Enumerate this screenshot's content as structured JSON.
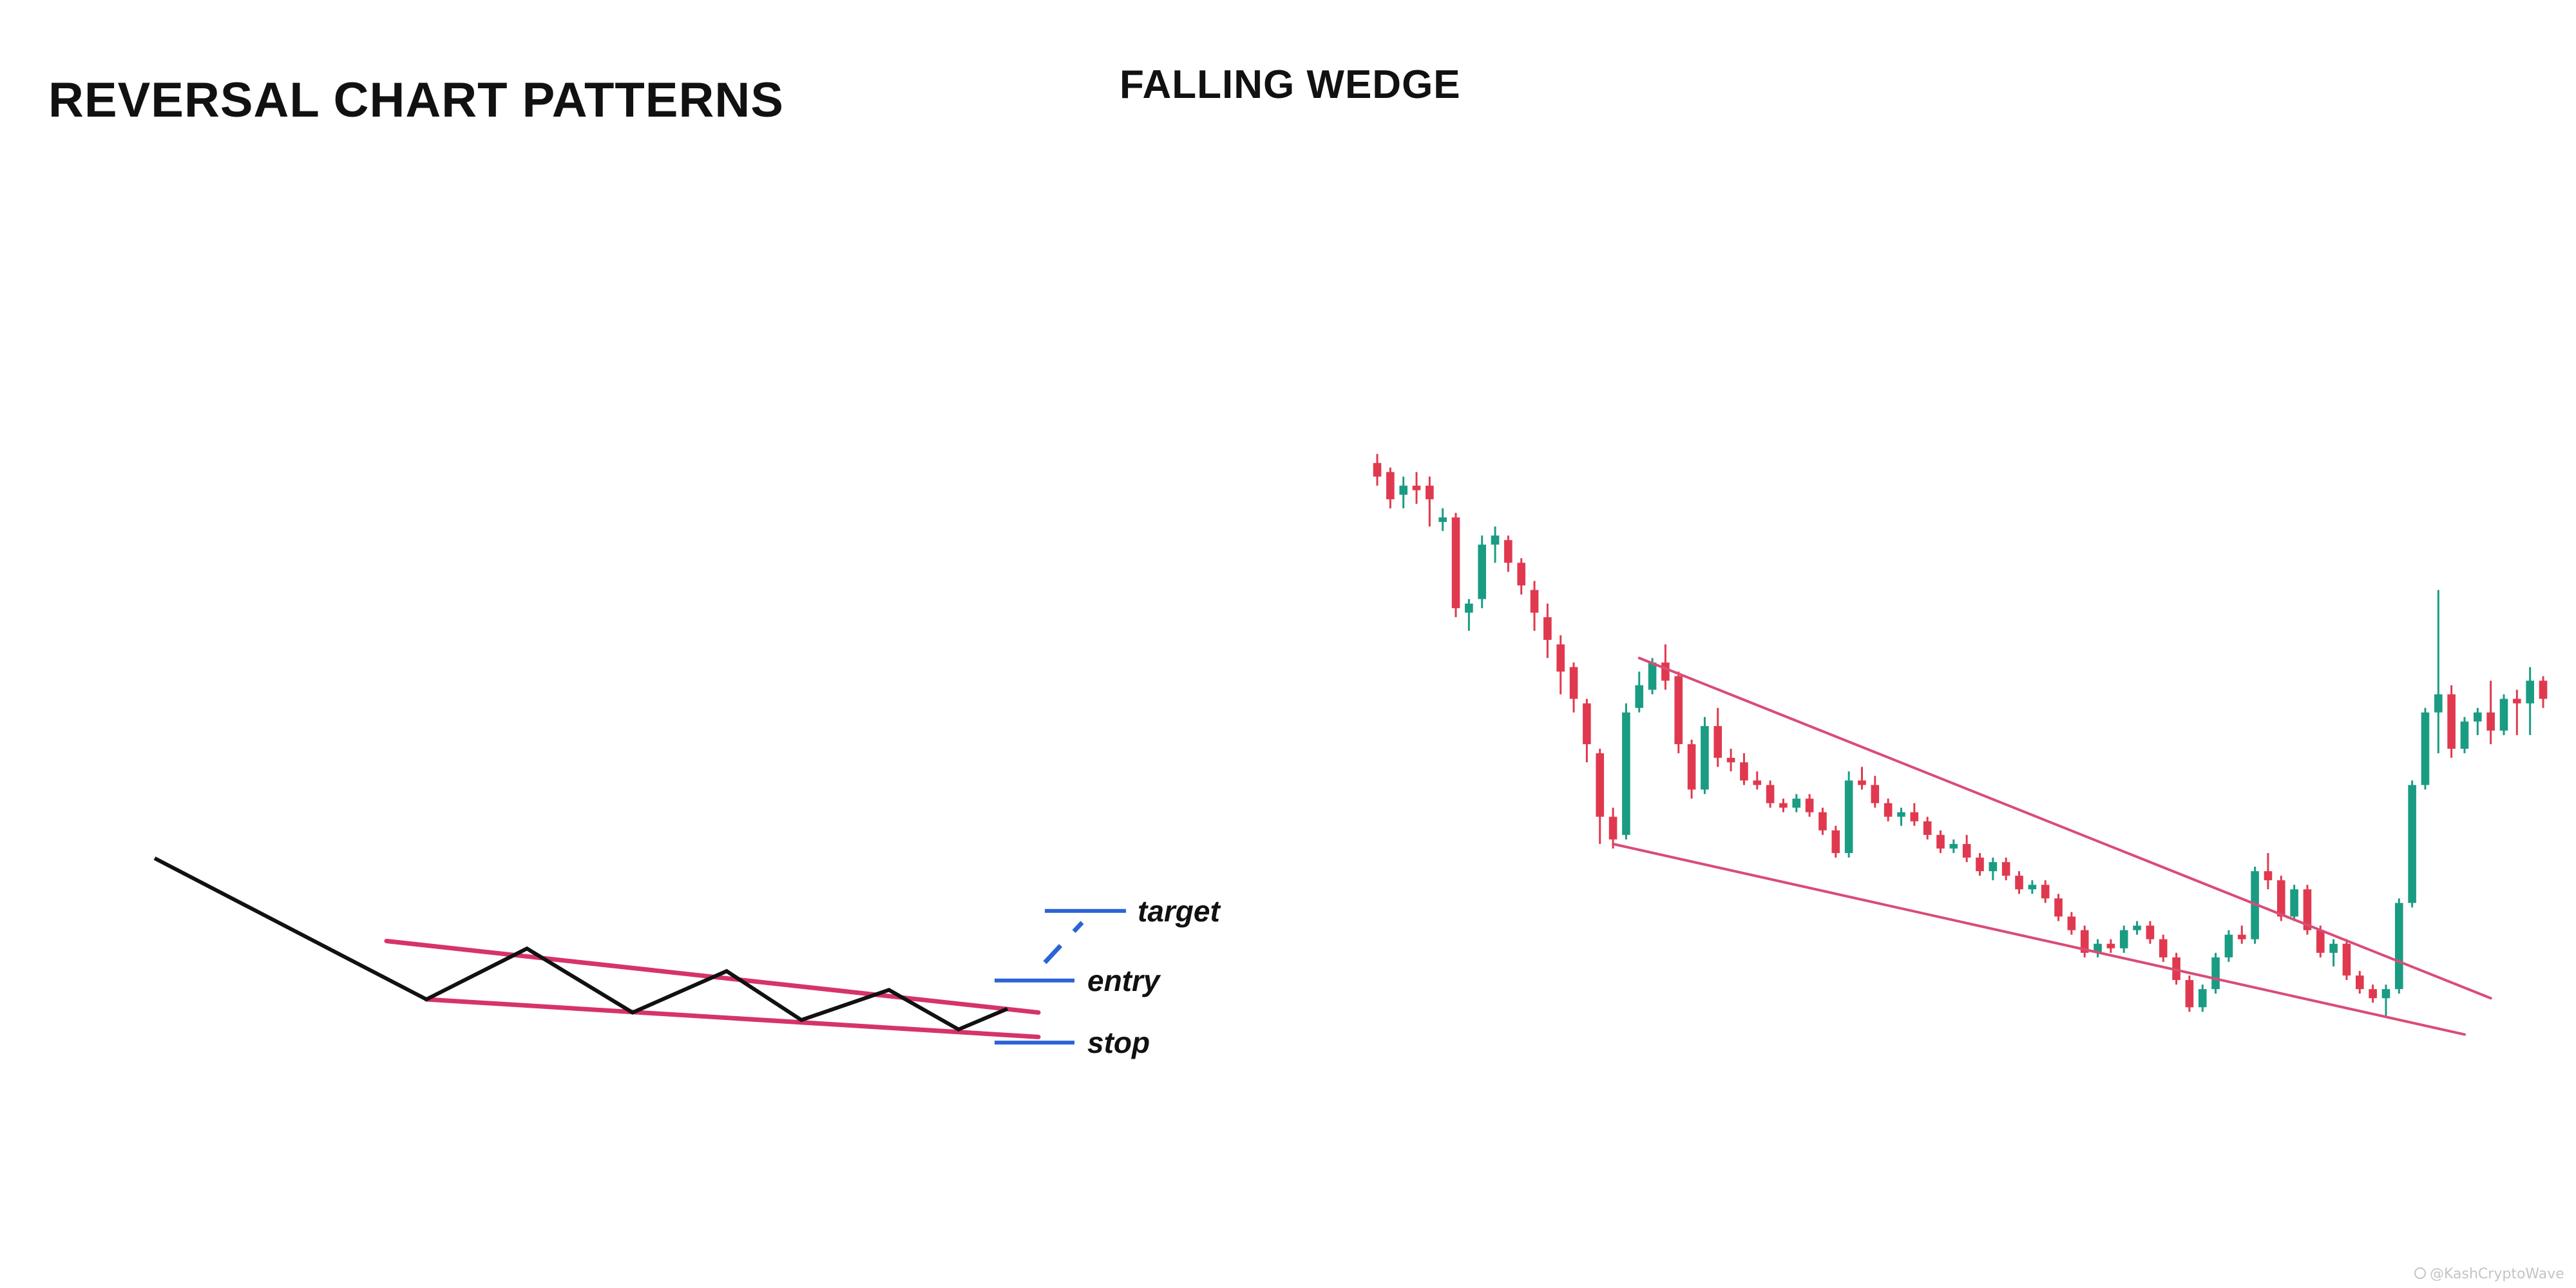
{
  "title": "REVERSAL CHART PATTERNS",
  "subtitle": "FALLING WEDGE",
  "watermark": "@KashCryptoWave",
  "colors": {
    "background": "#ffffff",
    "text": "#111111",
    "wedge_line": "#d6336c",
    "level_line": "#2c63d6",
    "price_path": "#111111",
    "candle_up": "#1a9c83",
    "candle_down": "#e0394f",
    "trendline": "#d94c76"
  },
  "chart_data": [
    {
      "type": "diagram",
      "pattern": "falling wedge",
      "levels": [
        {
          "key": "target",
          "label": "target"
        },
        {
          "key": "entry",
          "label": "entry"
        },
        {
          "key": "stop",
          "label": "stop"
        }
      ],
      "price_path": [
        100,
        25,
        52,
        18,
        40,
        14,
        30,
        9,
        20
      ],
      "wedge": {
        "upper": [
          [
            0,
            56
          ],
          [
            10,
            18
          ]
        ],
        "lower": [
          [
            0,
            25
          ],
          [
            10,
            5
          ]
        ]
      },
      "entry_level": 35,
      "target_level": 72,
      "stop_level": 2
    },
    {
      "type": "candlestick",
      "ohlc": [
        [
          98,
          100,
          93,
          95
        ],
        [
          96,
          97,
          88,
          90
        ],
        [
          91,
          95,
          88,
          93
        ],
        [
          93,
          96,
          89,
          92
        ],
        [
          93,
          95,
          84,
          90
        ],
        [
          85,
          88,
          83,
          86
        ],
        [
          86,
          87,
          64,
          66
        ],
        [
          65,
          68,
          61,
          67
        ],
        [
          68,
          82,
          66,
          80
        ],
        [
          80,
          84,
          76,
          82
        ],
        [
          81,
          82,
          74,
          76
        ],
        [
          76,
          77,
          69,
          71
        ],
        [
          70,
          72,
          61,
          65
        ],
        [
          64,
          67,
          55,
          59
        ],
        [
          58,
          60,
          47,
          52
        ],
        [
          53,
          54,
          43,
          46
        ],
        [
          45,
          46,
          32,
          36
        ],
        [
          34,
          35,
          14,
          20
        ],
        [
          20,
          22,
          13,
          15
        ],
        [
          16,
          45,
          15,
          43
        ],
        [
          44,
          52,
          43,
          49
        ],
        [
          48,
          55,
          47,
          54
        ],
        [
          54,
          58,
          48,
          50
        ],
        [
          51,
          52,
          34,
          36
        ],
        [
          36,
          37,
          24,
          26
        ],
        [
          26,
          42,
          25,
          40
        ],
        [
          40,
          44,
          31,
          33
        ],
        [
          33,
          35,
          30,
          32
        ],
        [
          32,
          34,
          27,
          28
        ],
        [
          28,
          30,
          26,
          27
        ],
        [
          27,
          28,
          22,
          23
        ],
        [
          23,
          24,
          21,
          22
        ],
        [
          22,
          25,
          21,
          24
        ],
        [
          24,
          25,
          20,
          21
        ],
        [
          21,
          22,
          16,
          17
        ],
        [
          17,
          18,
          11,
          12
        ],
        [
          12,
          30,
          11,
          28
        ],
        [
          28,
          31,
          26,
          27
        ],
        [
          27,
          29,
          22,
          23
        ],
        [
          23,
          24,
          19,
          20
        ],
        [
          20,
          22,
          18,
          21
        ],
        [
          21,
          23,
          18,
          19
        ],
        [
          19,
          20,
          15,
          16
        ],
        [
          16,
          17,
          12,
          13
        ],
        [
          13,
          15,
          12,
          14
        ],
        [
          14,
          16,
          10,
          11
        ],
        [
          11,
          12,
          7,
          8
        ],
        [
          8,
          11,
          6,
          10
        ],
        [
          10,
          11,
          6,
          7
        ],
        [
          7,
          8,
          3,
          4
        ],
        [
          4,
          6,
          3,
          5
        ],
        [
          5,
          6,
          1,
          2
        ],
        [
          2,
          3,
          -3,
          -2
        ],
        [
          -2,
          -1,
          -6,
          -5
        ],
        [
          -5,
          -4,
          -11,
          -10
        ],
        [
          -10,
          -7,
          -11,
          -8
        ],
        [
          -8,
          -7,
          -10,
          -9
        ],
        [
          -9,
          -4,
          -10,
          -5
        ],
        [
          -5,
          -3,
          -6,
          -4
        ],
        [
          -4,
          -3,
          -8,
          -7
        ],
        [
          -7,
          -6,
          -12,
          -11
        ],
        [
          -11,
          -10,
          -17,
          -16
        ],
        [
          -16,
          -15,
          -23,
          -22
        ],
        [
          -22,
          -17,
          -23,
          -18
        ],
        [
          -18,
          -10,
          -19,
          -11
        ],
        [
          -11,
          -5,
          -12,
          -6
        ],
        [
          -6,
          -4,
          -8,
          -7
        ],
        [
          -7,
          9,
          -8,
          8
        ],
        [
          8,
          12,
          4,
          6
        ],
        [
          6,
          7,
          -3,
          -2
        ],
        [
          -2,
          5,
          -3,
          4
        ],
        [
          4,
          5,
          -6,
          -5
        ],
        [
          -5,
          -4,
          -11,
          -10
        ],
        [
          -10,
          -7,
          -13,
          -8
        ],
        [
          -8,
          -7,
          -16,
          -15
        ],
        [
          -15,
          -14,
          -19,
          -18
        ],
        [
          -18,
          -17,
          -21,
          -20
        ],
        [
          -20,
          -17,
          -24,
          -18
        ],
        [
          -18,
          2,
          -19,
          1
        ],
        [
          1,
          28,
          0,
          27
        ],
        [
          27,
          44,
          26,
          43
        ],
        [
          43,
          70,
          34,
          47
        ],
        [
          47,
          49,
          33,
          35
        ],
        [
          35,
          42,
          34,
          41
        ],
        [
          41,
          44,
          38,
          43
        ],
        [
          43,
          50,
          36,
          39
        ],
        [
          39,
          47,
          38,
          46
        ],
        [
          46,
          48,
          38,
          45
        ],
        [
          45,
          53,
          38,
          50
        ],
        [
          50,
          51,
          44,
          46
        ]
      ],
      "trendlines": [
        {
          "name": "upper",
          "from": [
            20,
            55
          ],
          "to": [
            85,
            -20
          ]
        },
        {
          "name": "lower",
          "from": [
            18,
            14
          ],
          "to": [
            83,
            -28
          ]
        }
      ],
      "ylim": [
        -40,
        112
      ]
    }
  ]
}
